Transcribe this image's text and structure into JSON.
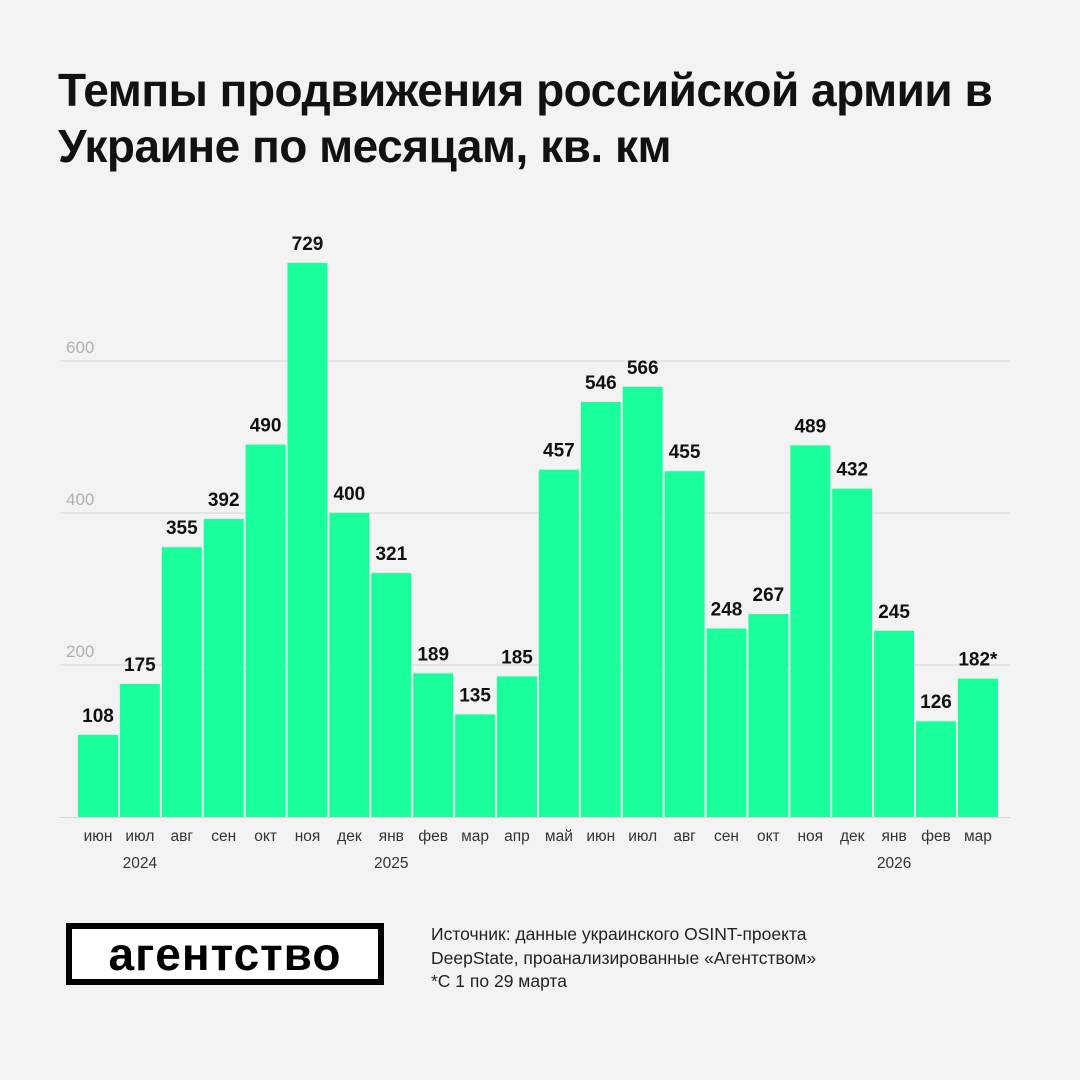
{
  "title": "Темпы продвижения российской армии в Украине по месяцам, кв. км",
  "chart_data": {
    "type": "bar",
    "title": "Темпы продвижения российской армии в Украине по месяцам, кв. км",
    "categories": [
      "июн",
      "июл",
      "авг",
      "сен",
      "окт",
      "ноя",
      "дек",
      "янв",
      "фев",
      "мар",
      "апр",
      "май",
      "июн",
      "июл",
      "авг",
      "сен",
      "окт",
      "ноя",
      "дек",
      "янв",
      "фев",
      "мар"
    ],
    "values": [
      108,
      175,
      355,
      392,
      490,
      729,
      400,
      321,
      189,
      135,
      185,
      457,
      546,
      566,
      455,
      248,
      267,
      489,
      432,
      245,
      126,
      182
    ],
    "value_labels": [
      "108",
      "175",
      "355",
      "392",
      "490",
      "729",
      "400",
      "321",
      "189",
      "135",
      "185",
      "457",
      "546",
      "566",
      "455",
      "248",
      "267",
      "489",
      "432",
      "245",
      "126",
      "182*"
    ],
    "year_labels": [
      {
        "label": "2024",
        "index": 1
      },
      {
        "label": "2025",
        "index": 7
      },
      {
        "label": "2026",
        "index": 19
      }
    ],
    "yticks": [
      200,
      400,
      600
    ],
    "ylim": [
      0,
      780
    ],
    "grid": true,
    "xlabel": "",
    "ylabel": "",
    "bar_color": "#19ff9c"
  },
  "logo": "агентство",
  "source": {
    "line1": "Источник: данные украинского OSINT-проекта",
    "line2": "DeepState, проанализированные «Агентством»",
    "note": "*С 1 по 29 марта"
  }
}
